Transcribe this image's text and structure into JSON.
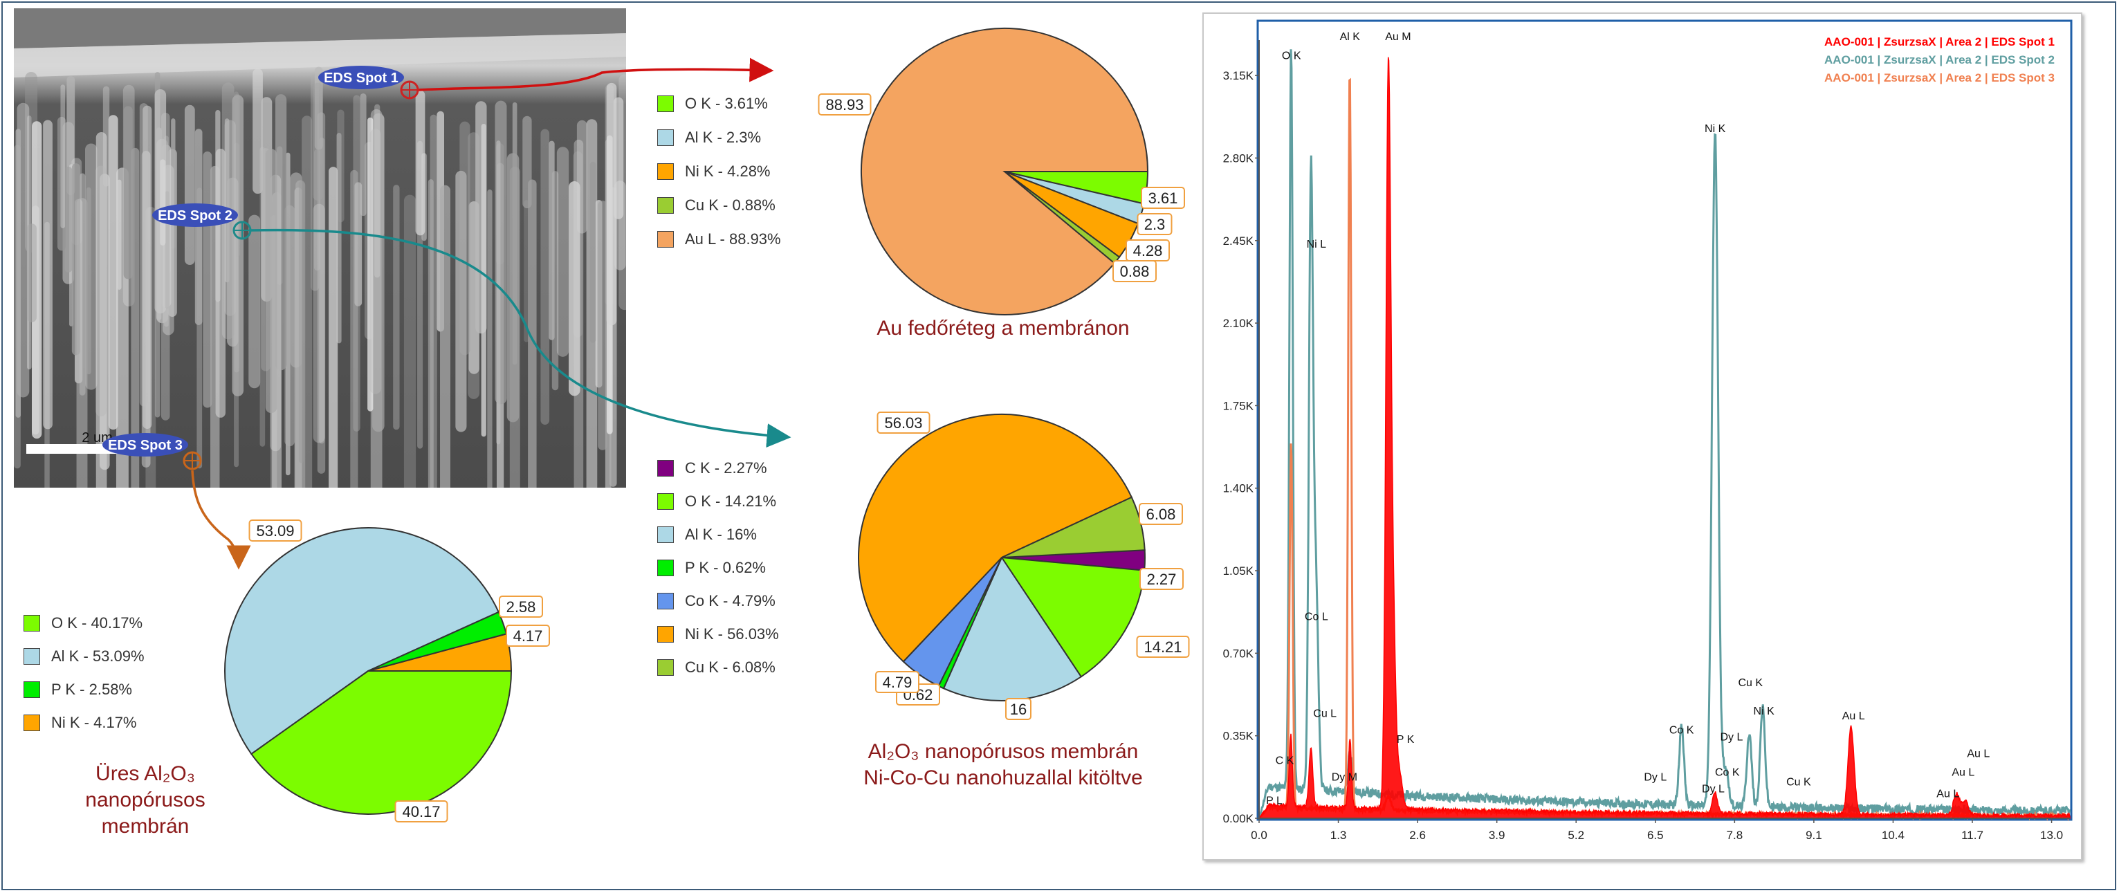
{
  "sem": {
    "scalebar_label": "2 um",
    "spots": [
      {
        "label": "EDS Spot 1",
        "color": "#cc2222"
      },
      {
        "label": "EDS Spot 2",
        "color": "#1e8a8a"
      },
      {
        "label": "EDS Spot 3",
        "color": "#c9651a"
      }
    ]
  },
  "chart_data": [
    {
      "type": "pie",
      "title": "Au fedőréteg a membránon",
      "legend": [
        "O  K - 3.61%",
        "Al K - 2.3%",
        "Ni K - 4.28%",
        "Cu K - 0.88%",
        "Au L - 88.93%"
      ],
      "series": [
        {
          "label": "O K",
          "value": 3.61,
          "value_label": "3.61",
          "color": "#7cfc00"
        },
        {
          "label": "Al K",
          "value": 2.3,
          "value_label": "2.3",
          "color": "#add8e6"
        },
        {
          "label": "Ni K",
          "value": 4.28,
          "value_label": "4.28",
          "color": "#ffa500"
        },
        {
          "label": "Cu K",
          "value": 0.88,
          "value_label": "0.88",
          "color": "#9acd32"
        },
        {
          "label": "Au L",
          "value": 88.93,
          "value_label": "88.93",
          "color": "#f4a460"
        }
      ]
    },
    {
      "type": "pie",
      "title_lines": [
        "Al₂O₃ nanopórusos membrán",
        "Ni-Co-Cu nanohuzallal kitöltve"
      ],
      "legend": [
        "C  K - 2.27%",
        "O  K - 14.21%",
        "Al K - 16%",
        "P  K - 0.62%",
        "Co K - 4.79%",
        "Ni K - 56.03%",
        "Cu K - 6.08%"
      ],
      "series": [
        {
          "label": "C K",
          "value": 2.27,
          "value_label": "2.27",
          "color": "#800080"
        },
        {
          "label": "O K",
          "value": 14.21,
          "value_label": "14.21",
          "color": "#7cfc00"
        },
        {
          "label": "Al K",
          "value": 16,
          "value_label": "16",
          "color": "#add8e6"
        },
        {
          "label": "P K",
          "value": 0.62,
          "value_label": "0.62",
          "color": "#00ee00"
        },
        {
          "label": "Co K",
          "value": 4.79,
          "value_label": "4.79",
          "color": "#6495ed"
        },
        {
          "label": "Ni K",
          "value": 56.03,
          "value_label": "56.03",
          "color": "#ffa500"
        },
        {
          "label": "Cu K",
          "value": 6.08,
          "value_label": "6.08",
          "color": "#9acd32"
        }
      ]
    },
    {
      "type": "pie",
      "title_lines": [
        "Üres Al₂O₃",
        "nanopórusos",
        "membrán"
      ],
      "legend": [
        "O  K - 40.17%",
        "Al K - 53.09%",
        "P  K - 2.58%",
        "Ni K - 4.17%"
      ],
      "series": [
        {
          "label": "O K",
          "value": 40.17,
          "value_label": "40.17",
          "color": "#7cfc00"
        },
        {
          "label": "Al K",
          "value": 53.09,
          "value_label": "53.09",
          "color": "#add8e6"
        },
        {
          "label": "P K",
          "value": 2.58,
          "value_label": "2.58",
          "color": "#00ee00"
        },
        {
          "label": "Ni K",
          "value": 4.17,
          "value_label": "4.17",
          "color": "#ffa500"
        }
      ]
    },
    {
      "type": "area",
      "xlim": [
        0,
        13.3
      ],
      "ylim": [
        0,
        3300
      ],
      "x_ticks": [
        "0.0",
        "1.3",
        "2.6",
        "3.9",
        "5.2",
        "6.5",
        "7.8",
        "9.1",
        "10.4",
        "11.7",
        "13.0"
      ],
      "x_tick_values": [
        0,
        1.3,
        2.6,
        3.9,
        5.2,
        6.5,
        7.8,
        9.1,
        10.4,
        11.7,
        13.0
      ],
      "y_ticks": [
        "0.00K",
        "0.35K",
        "0.70K",
        "1.05K",
        "1.40K",
        "1.75K",
        "2.10K",
        "2.45K",
        "2.80K",
        "3.15K"
      ],
      "y_tick_values": [
        0,
        350,
        700,
        1050,
        1400,
        1750,
        2100,
        2450,
        2800,
        3150
      ],
      "series": [
        {
          "name": "AAO-001 | ZsurzsaX | Area 2 | EDS Spot 1",
          "color": "#ff0000",
          "kind": "area",
          "peaks": [
            [
              0.52,
              300,
              0.025
            ],
            [
              0.85,
              250,
              0.03
            ],
            [
              1.49,
              290,
              0.025
            ],
            [
              2.12,
              3100,
              0.04
            ],
            [
              2.2,
              700,
              0.04
            ],
            [
              9.71,
              370,
              0.05
            ],
            [
              11.44,
              90,
              0.05
            ],
            [
              7.48,
              90,
              0.04
            ],
            [
              2.3,
              150,
              0.05
            ],
            [
              11.58,
              60,
              0.05
            ]
          ],
          "baseline": 50
        },
        {
          "name": "AAO-001 | ZsurzsaX | Area 2 | EDS Spot 2",
          "color": "#5f9ea0",
          "kind": "line",
          "peaks": [
            [
              0.525,
              3150,
              0.028
            ],
            [
              0.85,
              2550,
              0.033
            ],
            [
              0.93,
              900,
              0.04
            ],
            [
              1.49,
              170,
              0.03
            ],
            [
              6.93,
              330,
              0.04
            ],
            [
              7.48,
              2850,
              0.05
            ],
            [
              8.04,
              310,
              0.04
            ],
            [
              8.26,
              420,
              0.04
            ],
            [
              7.65,
              160,
              0.05
            ]
          ],
          "baseline": 120
        },
        {
          "name": "AAO-001 | ZsurzsaX | Area 2 | EDS Spot 3",
          "color": "#f08050",
          "kind": "line",
          "peaks": [
            [
              0.525,
              1550,
              0.025
            ],
            [
              1.487,
              3150,
              0.025
            ],
            [
              2.12,
              60,
              0.04
            ]
          ],
          "baseline": 40
        }
      ],
      "peak_labels": [
        {
          "text": "O  K",
          "x": 0.53,
          "y": 3220
        },
        {
          "text": "Al K",
          "x": 1.49,
          "y": 3300
        },
        {
          "text": "Au M",
          "x": 2.28,
          "y": 3300
        },
        {
          "text": "Ni L",
          "x": 0.94,
          "y": 2420
        },
        {
          "text": "Ni K",
          "x": 7.48,
          "y": 2910
        },
        {
          "text": "Co L",
          "x": 0.94,
          "y": 840
        },
        {
          "text": "Cu L",
          "x": 1.08,
          "y": 430
        },
        {
          "text": "C  K",
          "x": 0.42,
          "y": 230
        },
        {
          "text": "P  K",
          "x": 2.4,
          "y": 320
        },
        {
          "text": "Dy M",
          "x": 1.4,
          "y": 160
        },
        {
          "text": "P L",
          "x": 0.25,
          "y": 60
        },
        {
          "text": "Co K",
          "x": 6.93,
          "y": 360
        },
        {
          "text": "Dy L",
          "x": 6.5,
          "y": 160
        },
        {
          "text": "Dy L",
          "x": 7.75,
          "y": 330
        },
        {
          "text": "Co K",
          "x": 7.68,
          "y": 180
        },
        {
          "text": "Dy L",
          "x": 7.45,
          "y": 110
        },
        {
          "text": "Cu K",
          "x": 8.06,
          "y": 560
        },
        {
          "text": "Ni K",
          "x": 8.28,
          "y": 440
        },
        {
          "text": "Cu K",
          "x": 8.85,
          "y": 140
        },
        {
          "text": "Au L",
          "x": 9.75,
          "y": 420
        },
        {
          "text": "Au L",
          "x": 11.8,
          "y": 260
        },
        {
          "text": "Au L",
          "x": 11.55,
          "y": 180
        },
        {
          "text": "Au L",
          "x": 11.3,
          "y": 90
        }
      ]
    }
  ]
}
